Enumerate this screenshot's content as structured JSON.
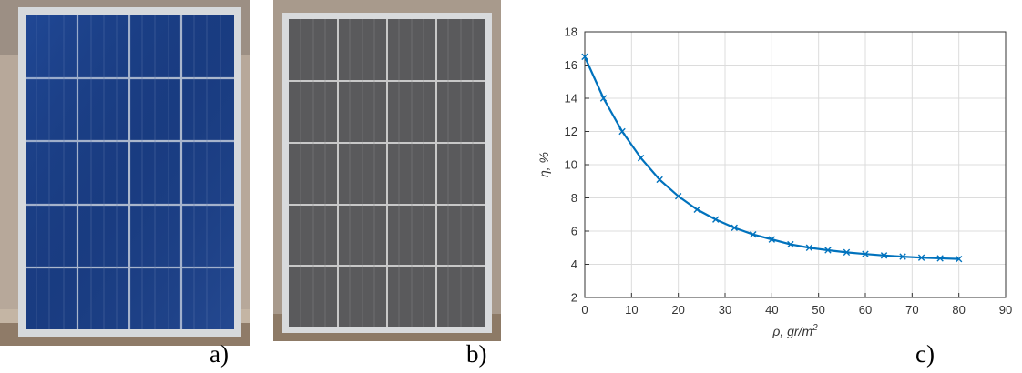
{
  "panels": {
    "a_label": "a)",
    "b_label": "b)",
    "c_label": "c)"
  },
  "photos": {
    "a_desc_icon": "clean-solar-panel-photo",
    "b_desc_icon": "dusty-solar-panel-photo"
  },
  "colors": {
    "series": "#0072BD",
    "grid": "#dcdcdc",
    "clean_cell": "#1b3f86",
    "dusty_cell": "#5a5a5c",
    "frame": "#cfd3d6"
  },
  "chart_data": {
    "type": "line",
    "title": "",
    "xlabel_prefix": "ρ, gr/m",
    "xlabel_sup": "2",
    "ylabel": "η, %",
    "xlim": [
      0,
      90
    ],
    "ylim": [
      2,
      18
    ],
    "xticks": [
      0,
      10,
      20,
      30,
      40,
      50,
      60,
      70,
      80,
      90
    ],
    "yticks": [
      2,
      4,
      6,
      8,
      10,
      12,
      14,
      16,
      18
    ],
    "grid": true,
    "marker": "x",
    "series": [
      {
        "x": [
          0,
          4,
          8,
          12,
          16,
          20,
          24,
          28,
          32,
          36,
          40,
          44,
          48,
          52,
          56,
          60,
          64,
          68,
          72,
          76,
          80
        ],
        "y": [
          16.5,
          14.0,
          12.0,
          10.4,
          9.1,
          8.1,
          7.3,
          6.7,
          6.2,
          5.8,
          5.5,
          5.2,
          5.0,
          4.85,
          4.72,
          4.62,
          4.53,
          4.46,
          4.4,
          4.36,
          4.32
        ]
      }
    ]
  }
}
